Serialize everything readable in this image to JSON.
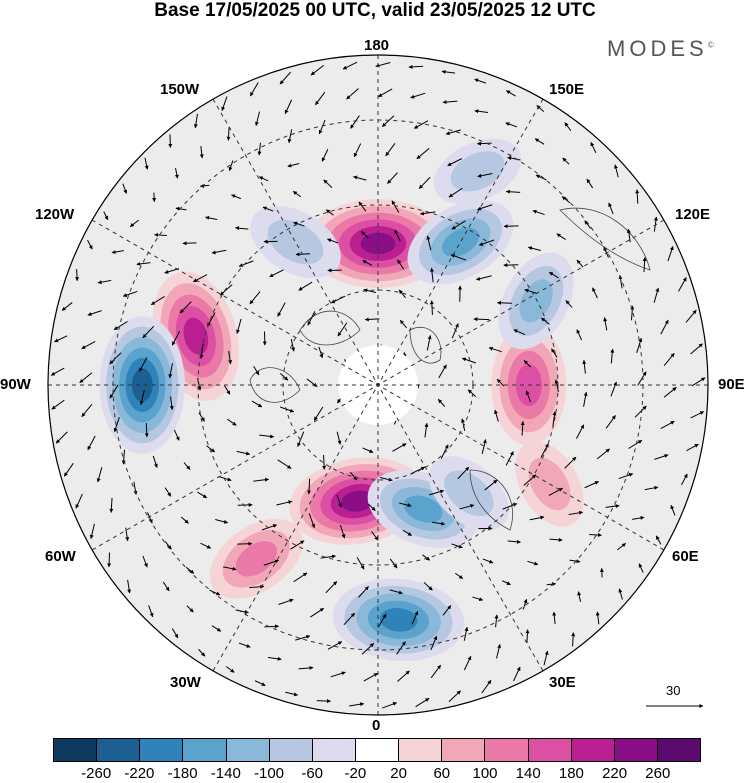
{
  "title": "Base 17/05/2025 00 UTC, valid 23/05/2025 12 UTC",
  "logo": "MODES",
  "logo_mark": "©",
  "longitude_labels": {
    "top": "180",
    "bottom": "0",
    "left": "90W",
    "right": "90E",
    "upper_left_1": "150W",
    "upper_left_2": "120W",
    "upper_right_1": "150E",
    "upper_right_2": "120E",
    "lower_left_1": "60W",
    "lower_left_2": "30W",
    "lower_right_1": "60E",
    "lower_right_2": "30E"
  },
  "vector_reference": "30",
  "colorbar": {
    "ticks": [
      "-260",
      "-220",
      "-180",
      "-140",
      "-100",
      "-60",
      "-20",
      "20",
      "60",
      "100",
      "140",
      "180",
      "220",
      "260"
    ],
    "colors": [
      "#0f3a5f",
      "#1b5f93",
      "#2f83b9",
      "#5aa3cc",
      "#8ab8d8",
      "#b6c7e1",
      "#dcdcee",
      "#ffffff",
      "#f6d3d6",
      "#f2a7b9",
      "#ea79a8",
      "#db4fa4",
      "#b91f91",
      "#8a0f86",
      "#5b0a6e"
    ]
  },
  "map": {
    "projection": "north-polar-stereographic",
    "field": "anomaly-shading-with-wind-vectors",
    "anomalies": [
      {
        "lon": 180,
        "lat": 60,
        "value": 240
      },
      {
        "lon": 150,
        "lat": 55,
        "value": -140
      },
      {
        "lon": -105,
        "lat": 50,
        "value": 200
      },
      {
        "lon": -90,
        "lat": 40,
        "value": -220
      },
      {
        "lon": -10,
        "lat": 65,
        "value": 220
      },
      {
        "lon": 20,
        "lat": 62,
        "value": -140
      },
      {
        "lon": 5,
        "lat": 40,
        "value": -200
      },
      {
        "lon": 90,
        "lat": 58,
        "value": 160
      },
      {
        "lon": 118,
        "lat": 52,
        "value": -100
      },
      {
        "lon": 60,
        "lat": 48,
        "value": 60
      },
      {
        "lon": -150,
        "lat": 55,
        "value": -80
      },
      {
        "lon": -35,
        "lat": 45,
        "value": 100
      },
      {
        "lon": 155,
        "lat": 40,
        "value": -60
      },
      {
        "lon": 40,
        "lat": 60,
        "value": -60
      }
    ]
  }
}
